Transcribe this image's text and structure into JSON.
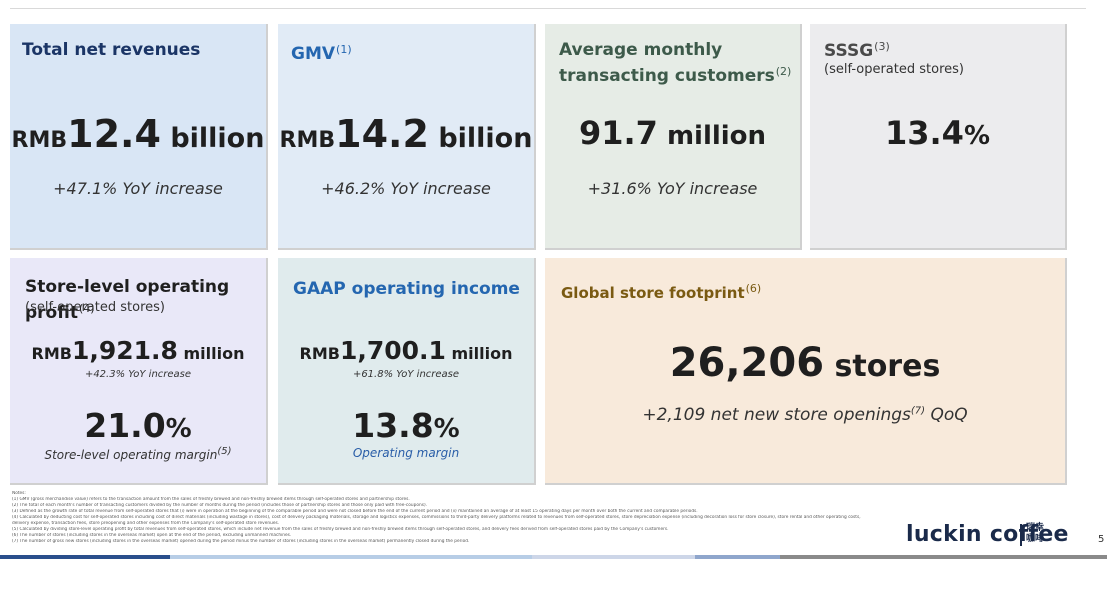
{
  "cards": {
    "revenue": {
      "title": "Total net revenues",
      "prefix": "RMB",
      "value": "12.4",
      "unit": " billion",
      "note": "+47.1% YoY increase",
      "bg": "#d9e6f5"
    },
    "gmv": {
      "title": "GMV",
      "sup": "(1)",
      "prefix": "RMB",
      "value": "14.2",
      "unit": " billion",
      "note": "+46.2% YoY increase",
      "bg": "#e1ebf6"
    },
    "customers": {
      "title_line1": "Average monthly",
      "title_line2": "transacting customers",
      "sup": "(2)",
      "value": "91.7",
      "unit": " million",
      "note": "+31.6% YoY increase",
      "bg": "#e6ece6"
    },
    "sssg": {
      "title": "SSSG",
      "sup": "(3)",
      "subtitle": "(self-operated stores)",
      "value": "13.4",
      "unit": "%",
      "bg": "#ececee"
    },
    "store_profit": {
      "title": "Store-level operating profit",
      "sup": "(4)",
      "subtitle": "(self-operated stores)",
      "prefix": "RMB",
      "value": "1,921.8",
      "unit": " million",
      "note": "+42.3% YoY increase",
      "pct_value": "21.0",
      "pct_unit": "%",
      "pct_label": "Store-level operating margin",
      "pct_sup": "(5)",
      "bg": "#e9e8f8"
    },
    "gaap": {
      "title": "GAAP operating income",
      "prefix": "RMB",
      "value": "1,700.1",
      "unit": " million",
      "note": "+61.8% YoY increase",
      "pct_value": "13.8",
      "pct_unit": "%",
      "pct_label": "Operating margin",
      "bg": "#e0ebed"
    },
    "footprint": {
      "title": "Global store footprint",
      "sup": "(6)",
      "value": "26,206",
      "unit": " stores",
      "note_pre": "+2,109 net new store openings",
      "note_sup": "(7)",
      "note_post": " QoQ",
      "bg": "#f8eadb"
    }
  },
  "colors": {
    "title_navy": "#1b3566",
    "title_blue": "#2466b0",
    "title_green": "#3d5a4a",
    "title_gray": "#4a4a4a",
    "title_brown": "#7a5a12",
    "label_blue": "#2a5ea8"
  },
  "footnotes": {
    "heading": "Notes:",
    "items": [
      "(1)    GMV (gross merchandise value) refers to the transaction amount from the sales of freshly brewed and non-freshly brewed items through self-operated stores and partnership stores.",
      "(2)    The total of each month's number of transacting customers divided by the number of months during the period (includes those of partnership stores and those only paid with free-coupons).",
      "(3)    Defined as the growth rate of total revenue from self-operated stores that (i) were in operation at the beginning of the comparable period and were not closed before the end of the current period and (ii) maintained an average of at least 15 operating days per month over both the current and comparable periods.",
      "(4)    Calculated by deducting cost for self-operated stores including cost of direct materials (including wastage in stores), cost of delivery packaging materials, storage and logistics expenses, commissions to third-party delivery platforms related to revenues from self-operated stores, store depreciation expense (including decoration loss for store closure), store rental and other operating costs,",
      "         delivery expense, transaction fees, store preopening and other expenses from the Company's self-operated store revenues.",
      "(5)    Calculated by dividing store-level operating profit by total revenues from self-operated stores, which include net revenue from the sales of freshly brewed and non-freshly brewed items through self-operated stores, and delivery fees derived from self-operated stores paid by the Company's customers.",
      "(6)    The number of stores (including stores in the overseas market) open at the end of the period, excluding unmanned machines.",
      "(7)    The number of gross new stores (including stores in the overseas market) opened during the period minus the number of stores (including stores in the overseas market) permanently closed during the period."
    ]
  },
  "brand": {
    "name": "luckin coffee",
    "cn_line1": "瑞幸",
    "cn_line2": "咖啡"
  },
  "page_number": "5"
}
